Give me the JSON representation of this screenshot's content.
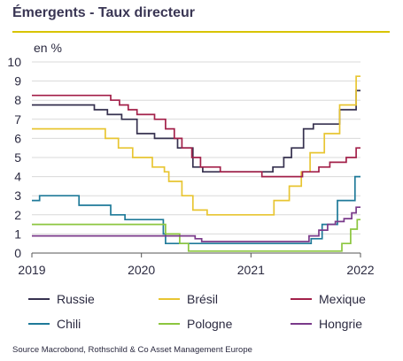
{
  "title": "Émergents - Taux directeur",
  "unit_label": "en %",
  "source": "Source Macrobond, Rothschild & Co Asset Management Europe",
  "chart_data": {
    "type": "line",
    "title": "Émergents - Taux directeur",
    "ylabel": "en %",
    "xlabel": "",
    "xlim": [
      2019,
      2022
    ],
    "ylim": [
      0,
      10
    ],
    "x_ticks": [
      "2019",
      "2020",
      "2021",
      "2022"
    ],
    "y_ticks": [
      "0",
      "1",
      "2",
      "3",
      "4",
      "5",
      "6",
      "7",
      "8",
      "9",
      "10"
    ],
    "grid": "horizontal",
    "legend_position": "bottom",
    "series": [
      {
        "name": "Russie",
        "color": "#36314f",
        "points": [
          [
            2019.0,
            7.75
          ],
          [
            2019.46,
            7.75
          ],
          [
            2019.57,
            7.5
          ],
          [
            2019.69,
            7.25
          ],
          [
            2019.82,
            7.0
          ],
          [
            2019.96,
            6.25
          ],
          [
            2020.12,
            6.0
          ],
          [
            2020.33,
            5.5
          ],
          [
            2020.47,
            4.5
          ],
          [
            2020.56,
            4.25
          ],
          [
            2021.2,
            4.5
          ],
          [
            2021.3,
            5.0
          ],
          [
            2021.37,
            5.5
          ],
          [
            2021.48,
            6.5
          ],
          [
            2021.57,
            6.75
          ],
          [
            2021.7,
            6.75
          ],
          [
            2021.81,
            7.5
          ],
          [
            2021.96,
            8.5
          ],
          [
            2022.0,
            8.5
          ]
        ]
      },
      {
        "name": "Brésil",
        "color": "#e8c532",
        "points": [
          [
            2019.0,
            6.5
          ],
          [
            2019.58,
            6.5
          ],
          [
            2019.67,
            6.0
          ],
          [
            2019.79,
            5.5
          ],
          [
            2019.92,
            5.0
          ],
          [
            2020.1,
            4.5
          ],
          [
            2020.21,
            4.25
          ],
          [
            2020.25,
            3.75
          ],
          [
            2020.37,
            3.0
          ],
          [
            2020.47,
            2.25
          ],
          [
            2020.6,
            2.0
          ],
          [
            2021.21,
            2.75
          ],
          [
            2021.35,
            3.5
          ],
          [
            2021.46,
            4.25
          ],
          [
            2021.54,
            5.25
          ],
          [
            2021.67,
            6.25
          ],
          [
            2021.81,
            7.75
          ],
          [
            2021.96,
            9.25
          ],
          [
            2022.0,
            9.25
          ]
        ]
      },
      {
        "name": "Mexique",
        "color": "#a3214a",
        "points": [
          [
            2019.0,
            8.25
          ],
          [
            2019.62,
            8.25
          ],
          [
            2019.72,
            8.0
          ],
          [
            2019.8,
            7.75
          ],
          [
            2019.88,
            7.5
          ],
          [
            2019.96,
            7.25
          ],
          [
            2020.12,
            7.0
          ],
          [
            2020.22,
            6.5
          ],
          [
            2020.3,
            6.0
          ],
          [
            2020.37,
            5.5
          ],
          [
            2020.46,
            5.0
          ],
          [
            2020.54,
            4.5
          ],
          [
            2020.72,
            4.25
          ],
          [
            2021.1,
            4.0
          ],
          [
            2021.47,
            4.25
          ],
          [
            2021.62,
            4.5
          ],
          [
            2021.72,
            4.75
          ],
          [
            2021.87,
            5.0
          ],
          [
            2021.96,
            5.5
          ],
          [
            2022.0,
            5.5
          ]
        ]
      },
      {
        "name": "Chili",
        "color": "#1f7a99",
        "points": [
          [
            2019.0,
            2.75
          ],
          [
            2019.07,
            3.0
          ],
          [
            2019.43,
            2.5
          ],
          [
            2019.72,
            2.0
          ],
          [
            2019.85,
            1.75
          ],
          [
            2020.2,
            1.0
          ],
          [
            2020.22,
            0.5
          ],
          [
            2021.55,
            0.75
          ],
          [
            2021.65,
            1.5
          ],
          [
            2021.79,
            2.75
          ],
          [
            2021.95,
            4.0
          ],
          [
            2022.0,
            4.0
          ]
        ]
      },
      {
        "name": "Pologne",
        "color": "#8cc63f",
        "points": [
          [
            2019.0,
            1.5
          ],
          [
            2020.2,
            1.5
          ],
          [
            2020.22,
            1.0
          ],
          [
            2020.35,
            0.5
          ],
          [
            2020.43,
            0.1
          ],
          [
            2021.75,
            0.1
          ],
          [
            2021.83,
            0.5
          ],
          [
            2021.91,
            1.25
          ],
          [
            2021.97,
            1.75
          ],
          [
            2022.0,
            1.75
          ]
        ]
      },
      {
        "name": "Hongrie",
        "color": "#7a3a8a",
        "points": [
          [
            2019.0,
            0.9
          ],
          [
            2020.3,
            0.9
          ],
          [
            2020.49,
            0.75
          ],
          [
            2020.55,
            0.6
          ],
          [
            2021.47,
            0.6
          ],
          [
            2021.53,
            0.9
          ],
          [
            2021.62,
            1.2
          ],
          [
            2021.7,
            1.5
          ],
          [
            2021.77,
            1.65
          ],
          [
            2021.85,
            1.8
          ],
          [
            2021.92,
            2.1
          ],
          [
            2021.96,
            2.4
          ],
          [
            2022.0,
            2.4
          ]
        ]
      }
    ]
  },
  "legend": [
    {
      "name": "Russie",
      "color": "#36314f"
    },
    {
      "name": "Brésil",
      "color": "#e8c532"
    },
    {
      "name": "Mexique",
      "color": "#a3214a"
    },
    {
      "name": "Chili",
      "color": "#1f7a99"
    },
    {
      "name": "Pologne",
      "color": "#8cc63f"
    },
    {
      "name": "Hongrie",
      "color": "#7a3a8a"
    }
  ]
}
